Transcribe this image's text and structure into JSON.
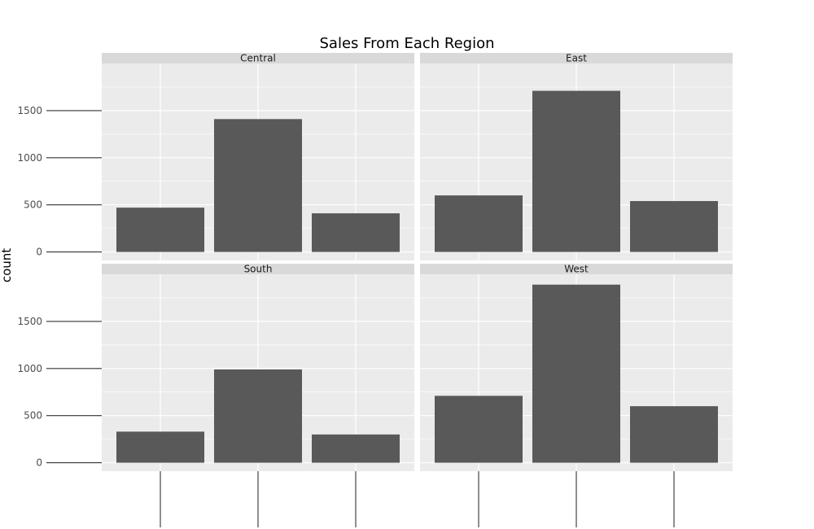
{
  "chart_data": {
    "type": "bar",
    "title": "Sales From Each Region",
    "xlabel": "",
    "ylabel": "count",
    "facets": [
      "Central",
      "East",
      "South",
      "West"
    ],
    "categories": [
      "",
      "",
      ""
    ],
    "series": [
      {
        "facet": "Central",
        "values": [
          470,
          1410,
          410
        ]
      },
      {
        "facet": "East",
        "values": [
          600,
          1710,
          540
        ]
      },
      {
        "facet": "South",
        "values": [
          330,
          990,
          300
        ]
      },
      {
        "facet": "West",
        "values": [
          710,
          1890,
          600
        ]
      }
    ],
    "ylim": [
      -90,
      2000
    ],
    "yticks": [
      0,
      500,
      1000,
      1500
    ],
    "ytick_labels": [
      "0",
      "500",
      "1000",
      "1500"
    ],
    "grid": true,
    "colors": {
      "bar": "#595959",
      "panel": "#ebebeb",
      "strip": "#d9d9d9",
      "gridline": "#ffffff",
      "tick": "#333333"
    }
  }
}
